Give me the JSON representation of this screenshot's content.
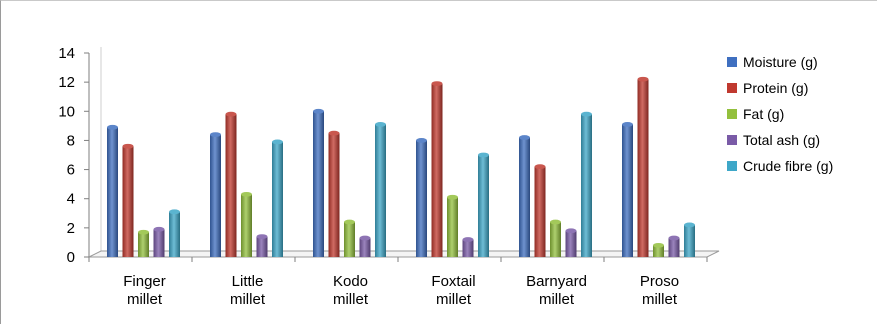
{
  "chart_data": {
    "type": "bar",
    "title": "",
    "xlabel": "",
    "ylabel": "",
    "ylim": [
      0,
      14
    ],
    "yticks": [
      0,
      2,
      4,
      6,
      8,
      10,
      12,
      14
    ],
    "grid": false,
    "legend_position": "right",
    "categories": [
      [
        "Finger",
        "millet"
      ],
      [
        "Little",
        "millet"
      ],
      [
        "Kodo",
        "millet"
      ],
      [
        "Foxtail",
        "millet"
      ],
      [
        "Barnyard",
        "millet"
      ],
      [
        "Proso",
        "millet"
      ]
    ],
    "series": [
      {
        "name": "Moisture (g)",
        "color": "#3f6fc0",
        "values": [
          8.9,
          8.4,
          10.0,
          8.0,
          8.2,
          9.1
        ]
      },
      {
        "name": "Protein (g)",
        "color": "#c0392f",
        "values": [
          7.6,
          9.8,
          8.5,
          11.9,
          6.2,
          12.2
        ]
      },
      {
        "name": "Fat (g)",
        "color": "#93c03d",
        "values": [
          1.7,
          4.3,
          2.4,
          4.1,
          2.4,
          0.8
        ]
      },
      {
        "name": "Total  ash (g)",
        "color": "#7a5ba7",
        "values": [
          1.9,
          1.4,
          1.3,
          1.2,
          1.8,
          1.3
        ]
      },
      {
        "name": "Crude fibre (g)",
        "color": "#3ea7c8",
        "values": [
          3.1,
          7.9,
          9.1,
          7.0,
          9.8,
          2.2
        ]
      }
    ]
  }
}
